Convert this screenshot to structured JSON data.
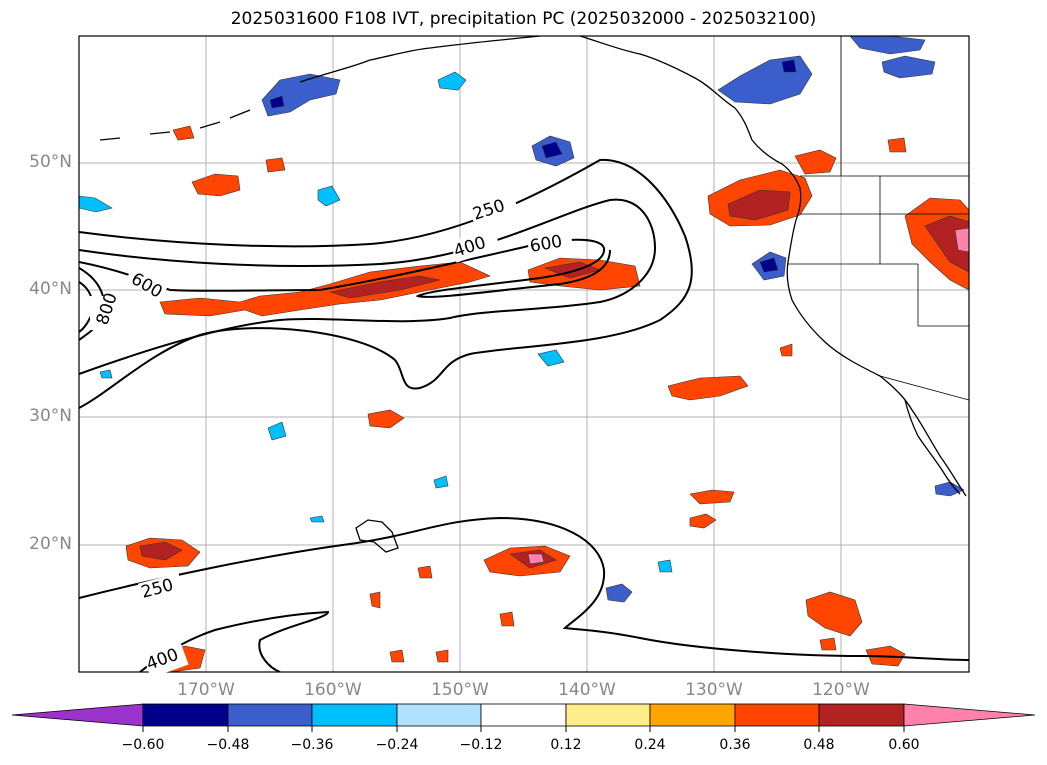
{
  "title": "2025031600 F108 IVT, precipitation PC (2025032000 - 2025032100)",
  "map": {
    "projection": "equirectangular",
    "lon_range": [
      "180°W",
      "110°W"
    ],
    "lat_range": [
      "10°N",
      "60°N"
    ],
    "gridlines": true,
    "region": "North Pacific and western North America"
  },
  "lat_labels": [
    "50°N",
    "40°N",
    "30°N",
    "20°N"
  ],
  "lon_labels": [
    "170°W",
    "160°W",
    "150°W",
    "140°W",
    "130°W",
    "120°W"
  ],
  "ivt_contour_labels": [
    "250",
    "400",
    "600",
    "800",
    "600",
    "250",
    "400"
  ],
  "ivt_contour_levels": [
    250,
    400,
    600,
    800
  ],
  "colorbar": {
    "ticks": [
      "−0.60",
      "−0.48",
      "−0.36",
      "−0.24",
      "−0.12",
      "0.12",
      "0.24",
      "0.36",
      "0.48",
      "0.60"
    ],
    "colors": [
      "#9a33cc",
      "#00008b",
      "#3a5fcd",
      "#00bfff",
      "#b0e2ff",
      "#ffffff",
      "#ffec8b",
      "#ffa500",
      "#ff4500",
      "#b22222",
      "#ff82ab"
    ],
    "extend": "both"
  }
}
